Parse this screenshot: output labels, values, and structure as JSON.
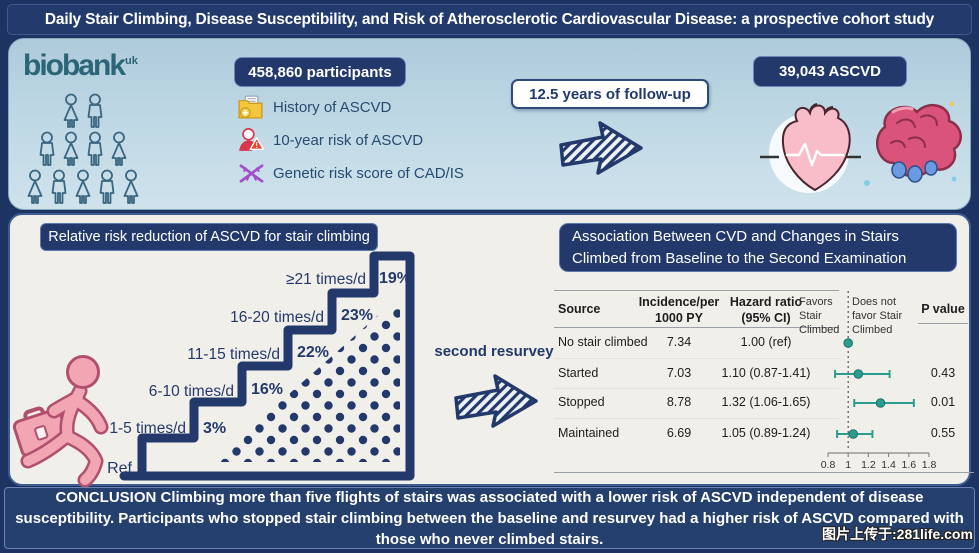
{
  "title": "Daily Stair Climbing, Disease Susceptibility, and Risk of Atherosclerotic Cardiovascular Disease: a prospective cohort study",
  "cohort": {
    "logo_text": "biobank",
    "logo_sup": "uk",
    "participants_badge": "458,860 participants",
    "risk_items": [
      {
        "icon": "folder-plus-icon",
        "label": "History of ASCVD"
      },
      {
        "icon": "person-warning-icon",
        "label": "10-year risk of ASCVD"
      },
      {
        "icon": "dna-icon",
        "label": "Genetic risk score of CAD/IS"
      }
    ],
    "followup_badge": "12.5 years of follow-up",
    "outcome_badge": "39,043 ASCVD"
  },
  "stair_panel": {
    "header": "Relative risk reduction of ASCVD for stair climbing",
    "resurvey_label": "second resurvey"
  },
  "association_panel": {
    "header": "Association Between CVD and Changes in Stairs Climbed from Baseline to the Second Examination",
    "columns": {
      "source": "Source",
      "incidence_l1": "Incidence/per",
      "incidence_l2": "1000 PY",
      "hazard_l1": "Hazard ratio",
      "hazard_l2": "(95% CI)",
      "favors_l1": "Favors",
      "favors_l2": "Stair",
      "favors_l3": "Climbed",
      "not_favor_l1": "Does not",
      "not_favor_l2": "favor Stair",
      "not_favor_l3": "Climbed",
      "p": "P value"
    },
    "rows": [
      {
        "source": "No stair climbed",
        "incidence": "7.34",
        "hazard": "1.00 (ref)",
        "p": ""
      },
      {
        "source": "Started",
        "incidence": "7.03",
        "hazard": "1.10 (0.87-1.41)",
        "p": "0.43"
      },
      {
        "source": "Stopped",
        "incidence": "8.78",
        "hazard": "1.32 (1.06-1.65)",
        "p": "0.01"
      },
      {
        "source": "Maintained",
        "incidence": "6.69",
        "hazard": "1.05 (0.89-1.24)",
        "p": "0.55"
      }
    ]
  },
  "conclusion": "CONCLUSION Climbing more than five flights of stairs was associated with a lower risk of ASCVD independent of disease susceptibility. Participants who stopped stair climbing between the baseline and resurvey had a higher risk of ASCVD compared with those who never climbed stairs.",
  "watermark": "图片上传于:281life.com",
  "colors": {
    "navy": "#24396b",
    "panel_blue": "#b9d3e1",
    "panel_cream": "#f1efea",
    "forest_teal": "#2a9d8f",
    "pink": "#f2a6b4"
  },
  "chart_data": [
    {
      "type": "bar",
      "style": "ascending-staircase-infographic",
      "title": "Relative risk reduction of ASCVD for stair climbing",
      "categories": [
        "Ref",
        "1-5 times/d",
        "6-10 times/d",
        "11-15 times/d",
        "16-20 times/d",
        "≥21 times/d"
      ],
      "values": [
        0,
        3,
        16,
        22,
        23,
        19
      ],
      "value_labels": [
        "",
        "3%",
        "16%",
        "22%",
        "23%",
        "19%"
      ],
      "ylabel": "Relative risk reduction of ASCVD (%)"
    },
    {
      "type": "scatter",
      "subtype": "forest-plot",
      "title": "Association Between CVD and Changes in Stairs Climbed from Baseline to the Second Examination",
      "rows": [
        {
          "label": "No stair climbed",
          "incidence_per_1000py": 7.34,
          "hr": 1.0,
          "ci_low": null,
          "ci_high": null,
          "p": null
        },
        {
          "label": "Started",
          "incidence_per_1000py": 7.03,
          "hr": 1.1,
          "ci_low": 0.87,
          "ci_high": 1.41,
          "p": 0.43
        },
        {
          "label": "Stopped",
          "incidence_per_1000py": 8.78,
          "hr": 1.32,
          "ci_low": 1.06,
          "ci_high": 1.65,
          "p": 0.01
        },
        {
          "label": "Maintained",
          "incidence_per_1000py": 6.69,
          "hr": 1.05,
          "ci_low": 0.89,
          "ci_high": 1.24,
          "p": 0.55
        }
      ],
      "xlim": [
        0.8,
        1.8
      ],
      "xticks": [
        0.8,
        1,
        1.2,
        1.4,
        1.6,
        1.8
      ],
      "ref_line": 1.0,
      "legend_left": "Favors Stair Climbed",
      "legend_right": "Does not favor Stair Climbed",
      "legend_position": "top"
    }
  ]
}
